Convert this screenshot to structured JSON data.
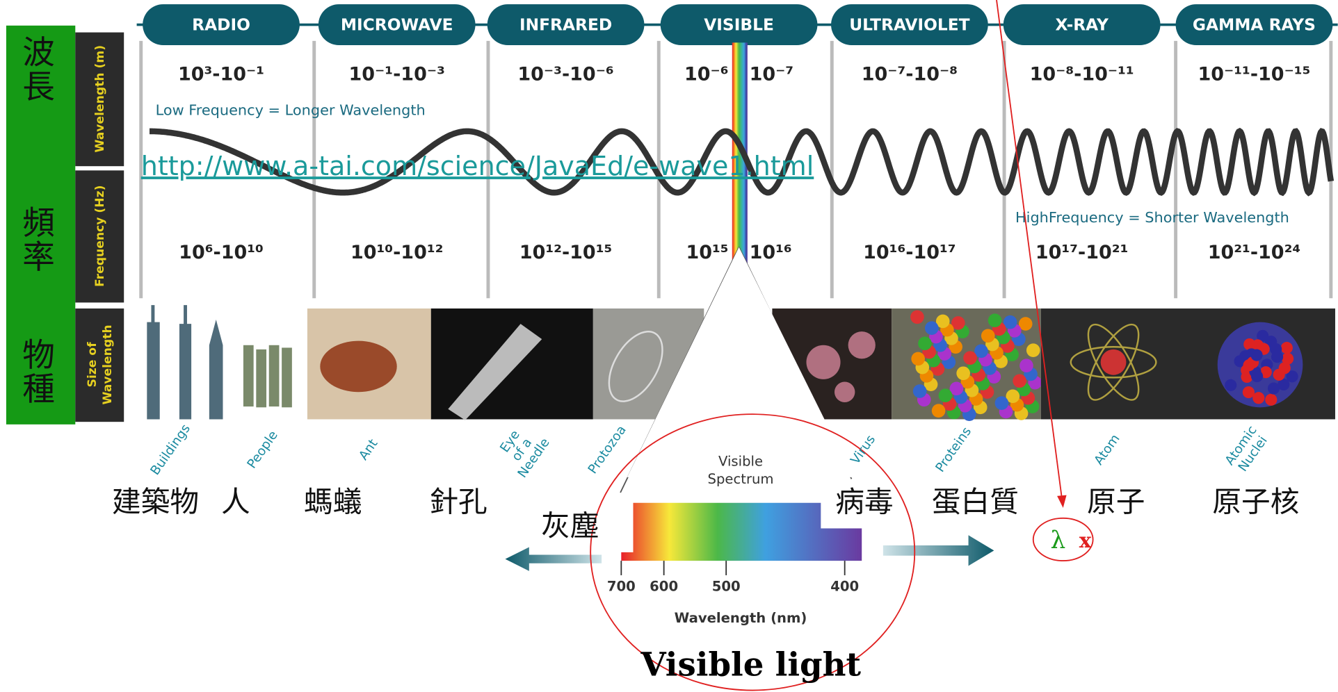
{
  "side_labels": {
    "wavelength_zh": [
      "波",
      "長"
    ],
    "frequency_zh": [
      "頻",
      "率"
    ],
    "size_zh": [
      "物",
      "種"
    ],
    "wavelength": "Wavelength (m)",
    "frequency": "Frequency (Hz)",
    "size": [
      "Size of",
      "Wavelength"
    ]
  },
  "bands": [
    {
      "name": "RADIO",
      "wavelength": "10³-10⁻¹",
      "frequency": "10⁶-10¹⁰"
    },
    {
      "name": "MICROWAVE",
      "wavelength": "10⁻¹-10⁻³",
      "frequency": "10¹⁰-10¹²"
    },
    {
      "name": "INFRARED",
      "wavelength": "10⁻³-10⁻⁶",
      "frequency": "10¹²-10¹⁵"
    },
    {
      "name": "VISIBLE",
      "wavelength": "10⁻⁶ - 10⁻⁷",
      "frequency": "10¹⁵ - 10¹⁶"
    },
    {
      "name": "ULTRAVIOLET",
      "wavelength": "10⁻⁷-10⁻⁸",
      "frequency": "10¹⁶-10¹⁷"
    },
    {
      "name": "X-RAY",
      "wavelength": "10⁻⁸-10⁻¹¹",
      "frequency": "10¹⁷-10²¹"
    },
    {
      "name": "GAMMA RAYS",
      "wavelength": "10⁻¹¹-10⁻¹⁵",
      "frequency": "10²¹-10²⁴"
    }
  ],
  "low_frequency_note": "Low Frequency = Longer Wavelength",
  "high_frequency_note": "HighFrequency = Shorter Wavelength",
  "link": "http://www.a-tai.com/science/JavaEd/e-wave1.html",
  "objects": [
    {
      "label": [
        "Buildings"
      ],
      "name_zh": "建築物"
    },
    {
      "label": [
        "People"
      ],
      "name_zh": "人"
    },
    {
      "label": [
        "Ant"
      ],
      "name_zh": "螞蟻"
    },
    {
      "label": [
        "Eye",
        "of a",
        "Needle"
      ],
      "name_zh": "針孔"
    },
    {
      "label": [
        "Protozoa"
      ],
      "name_zh": "灰塵"
    },
    {
      "label": [
        "Virus"
      ],
      "name_zh": "病毒"
    },
    {
      "label": [
        "Proteins"
      ],
      "name_zh": "蛋白質"
    },
    {
      "label": [
        "Atom"
      ],
      "name_zh": "原子"
    },
    {
      "label": [
        "Atomic",
        "Nuclei"
      ],
      "name_zh": "原子核"
    }
  ],
  "visible_spectrum": {
    "title": [
      "Visible",
      "Spectrum"
    ],
    "ticks": [
      "700",
      "600",
      "500",
      "400"
    ],
    "axis_label": "Wavelength (nm)",
    "caption": "Visible light"
  },
  "annotation": {
    "symbol": "λ",
    "mark": "x"
  }
}
